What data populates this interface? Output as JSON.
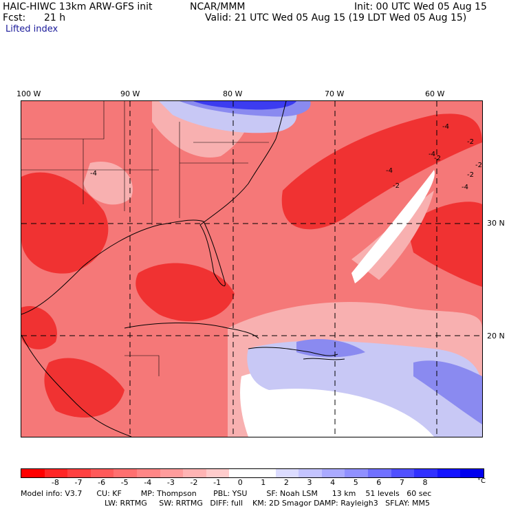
{
  "header": {
    "model_line": "HAIC-HIWC 13km ARW-GFS init",
    "org": "NCAR/MMM",
    "init": "Init: 00 UTC Wed 05 Aug 15",
    "fcst_label": "Fcst:",
    "fcst_value": "21 h",
    "valid": "Valid: 21 UTC Wed 05 Aug 15 (19 LDT Wed 05 Aug 15)",
    "field": "Lifted index"
  },
  "map": {
    "lon_labels": [
      "100 W",
      "90 W",
      "80 W",
      "70 W",
      "60 W"
    ],
    "lat_labels": [
      "30 N",
      "20 N"
    ],
    "contour_labels": [
      "-4",
      "-2",
      "-4",
      "-2",
      "-4",
      "-2",
      "-4",
      "-2",
      "-4",
      "-2"
    ],
    "colors": {
      "unstable_dark": "#f03232",
      "unstable_mid": "#f57878",
      "unstable_light": "#f8b0b0",
      "neutral": "#ffffff",
      "stable_light": "#c8c8f5",
      "stable_mid": "#8a8af0",
      "stable_dark": "#3c3cf0"
    }
  },
  "colorbar": {
    "ticks": [
      "-8",
      "-7",
      "-6",
      "-5",
      "-4",
      "-3",
      "-2",
      "-1",
      "0",
      "1",
      "2",
      "3",
      "4",
      "5",
      "6",
      "7",
      "8"
    ],
    "unit": "°C",
    "colors": [
      "#ff0000",
      "#ff2626",
      "#ff4040",
      "#ff5a5a",
      "#ff7070",
      "#ff8686",
      "#ff9c9c",
      "#ffb4b4",
      "#ffcccc",
      "#ffffff",
      "#ffffff",
      "#dcdcff",
      "#c4c4ff",
      "#aaaaff",
      "#9090ff",
      "#7070ff",
      "#5050ff",
      "#3030ff",
      "#1414ff",
      "#0000ee"
    ]
  },
  "model_info": {
    "line1": "Model info: V3.7      CU: KF        MP: Thompson       PBL: YSU        SF: Noah LSM      13 km    51 levels   60 sec",
    "line2": "LW: RRTMG     SW: RRTMG   DIFF: full    KM: 2D Smagor DAMP: Rayleigh3   SFLAY: MM5"
  }
}
